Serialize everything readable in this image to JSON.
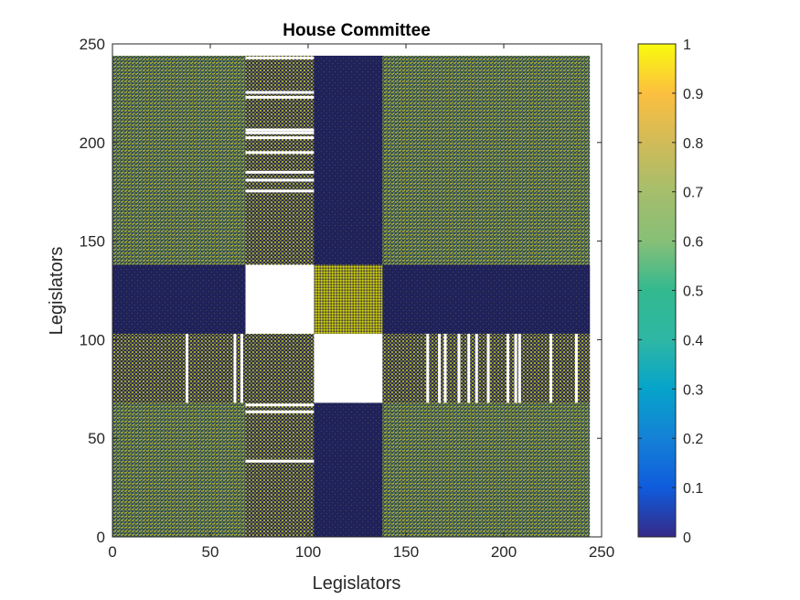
{
  "chart_data": {
    "type": "heatmap",
    "title": "House Committee",
    "xlabel": "Legislators",
    "ylabel": "Legislators",
    "xlim": [
      0,
      250
    ],
    "ylim": [
      0,
      250
    ],
    "x_ticks": [
      0,
      50,
      100,
      150,
      200,
      250
    ],
    "y_ticks": [
      0,
      50,
      100,
      150,
      200,
      250
    ],
    "matrix_size": 244,
    "value_range": [
      0,
      1
    ],
    "colormap": "parula",
    "colorbar_ticks": [
      0,
      0.1,
      0.2,
      0.3,
      0.4,
      0.5,
      0.6,
      0.7,
      0.8,
      0.9,
      1
    ],
    "blocks": [
      {
        "x": [
          0,
          244
        ],
        "y": [
          0,
          244
        ],
        "pattern": "mixed",
        "mean_value": 0.6
      },
      {
        "x": [
          0,
          244
        ],
        "y": [
          103,
          138
        ],
        "pattern": "low",
        "mean_value": 0.08
      },
      {
        "x": [
          103,
          138
        ],
        "y": [
          0,
          244
        ],
        "pattern": "low",
        "mean_value": 0.08
      },
      {
        "x": [
          0,
          244
        ],
        "y": [
          68,
          103
        ],
        "pattern": "checker",
        "mean_value": 0.5
      },
      {
        "x": [
          68,
          103
        ],
        "y": [
          0,
          244
        ],
        "pattern": "checker",
        "mean_value": 0.5
      },
      {
        "x": [
          103,
          138
        ],
        "y": [
          103,
          138
        ],
        "pattern": "checker-yellow",
        "mean_value": 0.75
      },
      {
        "x": [
          68,
          103
        ],
        "y": [
          103,
          138
        ],
        "pattern": "missing"
      },
      {
        "x": [
          103,
          138
        ],
        "y": [
          68,
          103
        ],
        "pattern": "missing"
      }
    ],
    "missing_columns_in_rows_68_103": [
      38,
      62.5,
      66,
      128,
      161,
      167,
      170,
      177,
      182,
      186,
      192,
      202,
      206,
      208,
      224,
      237
    ],
    "missing_rows_in_columns_68_103": [
      38.5,
      63.5,
      67,
      175.5,
      181,
      185,
      195,
      202.5,
      205,
      206.5,
      223,
      225.5,
      243
    ]
  },
  "colors": {
    "low": "#352a87",
    "mid": "#28b8a4",
    "high": "#f9fb0e",
    "background": "#ffffff",
    "axis": "#262626"
  }
}
